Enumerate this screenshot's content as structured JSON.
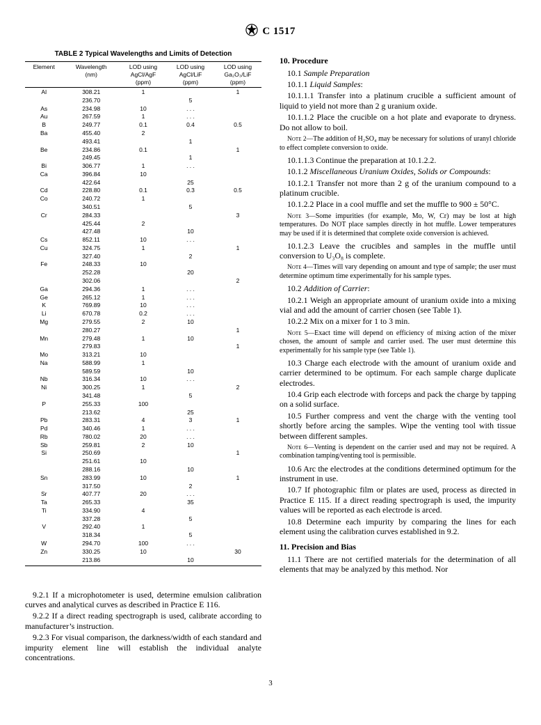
{
  "doc": {
    "standard": "C 1517",
    "logo_label": "ASTM logo",
    "page_number": "3"
  },
  "table2": {
    "caption": "TABLE 2  Typical Wavelengths and Limits of Detection",
    "headers": [
      "Element",
      "Wavelength\n(nm)",
      "LOD using\nAgCl/AgF\n(ppm)",
      "LOD using\nAgCl/LiF\n(ppm)",
      "LOD using\nGa₂O₃/LiF\n(ppm)"
    ],
    "col_widths_pct": [
      16,
      24,
      20,
      20,
      20
    ],
    "rows": [
      [
        "Al",
        "308.21",
        "1",
        "",
        "1"
      ],
      [
        "",
        "236.70",
        "",
        "5",
        ""
      ],
      [
        "As",
        "234.98",
        "10",
        ". . .",
        ""
      ],
      [
        "Au",
        "267.59",
        "1",
        ". . .",
        ""
      ],
      [
        "B",
        "249.77",
        "0.1",
        "0.4",
        "0.5"
      ],
      [
        "Ba",
        "455.40",
        "2",
        "",
        ""
      ],
      [
        "",
        "493.41",
        "",
        "1",
        ""
      ],
      [
        "Be",
        "234.86",
        "0.1",
        "",
        "1"
      ],
      [
        "",
        "249.45",
        "",
        "1",
        ""
      ],
      [
        "Bi",
        "306.77",
        "1",
        ". . .",
        ""
      ],
      [
        "Ca",
        "396.84",
        "10",
        "",
        ""
      ],
      [
        "",
        "422.64",
        "",
        "25",
        ""
      ],
      [
        "Cd",
        "228.80",
        "0.1",
        "0.3",
        "0.5"
      ],
      [
        "Co",
        "240.72",
        "1",
        "",
        ""
      ],
      [
        "",
        "340.51",
        "",
        "5",
        ""
      ],
      [
        "Cr",
        "284.33",
        "",
        "",
        "3"
      ],
      [
        "",
        "425.44",
        "2",
        "",
        ""
      ],
      [
        "",
        "427.48",
        "",
        "10",
        ""
      ],
      [
        "Cs",
        "852.11",
        "10",
        ". . .",
        ""
      ],
      [
        "Cu",
        "324.75",
        "1",
        "",
        "1"
      ],
      [
        "",
        "327.40",
        "",
        "2",
        ""
      ],
      [
        "Fe",
        "248.33",
        "10",
        "",
        ""
      ],
      [
        "",
        "252.28",
        "",
        "20",
        ""
      ],
      [
        "",
        "302.06",
        "",
        "",
        "2"
      ],
      [
        "Ga",
        "294.36",
        "1",
        ". . .",
        ""
      ],
      [
        "Ge",
        "265.12",
        "1",
        ". . .",
        ""
      ],
      [
        "K",
        "769.89",
        "10",
        ". . .",
        ""
      ],
      [
        "Li",
        "670.78",
        "0.2",
        ". . .",
        ""
      ],
      [
        "Mg",
        "279.55",
        "2",
        "10",
        ""
      ],
      [
        "",
        "280.27",
        "",
        "",
        "1"
      ],
      [
        "Mn",
        "279.48",
        "1",
        "10",
        ""
      ],
      [
        "",
        "279.83",
        "",
        "",
        "1"
      ],
      [
        "Mo",
        "313.21",
        "10",
        "",
        ""
      ],
      [
        "Na",
        "588.99",
        "1",
        "",
        ""
      ],
      [
        "",
        "589.59",
        "",
        "10",
        ""
      ],
      [
        "Nb",
        "316.34",
        "10",
        ". . .",
        ""
      ],
      [
        "Ni",
        "300.25",
        "1",
        "",
        "2"
      ],
      [
        "",
        "341.48",
        "",
        "5",
        ""
      ],
      [
        "P",
        "255.33",
        "100",
        "",
        ""
      ],
      [
        "",
        "213.62",
        "",
        "25",
        ""
      ],
      [
        "Pb",
        "283.31",
        "4",
        "3",
        "1"
      ],
      [
        "Pd",
        "340.46",
        "1",
        ". . .",
        ""
      ],
      [
        "Rb",
        "780.02",
        "20",
        ". . .",
        ""
      ],
      [
        "Sb",
        "259.81",
        "2",
        "10",
        ""
      ],
      [
        "Si",
        "250.69",
        "",
        "",
        "1"
      ],
      [
        "",
        "251.61",
        "10",
        "",
        ""
      ],
      [
        "",
        "288.16",
        "",
        "10",
        ""
      ],
      [
        "Sn",
        "283.99",
        "10",
        "",
        "1"
      ],
      [
        "",
        "317.50",
        "",
        "2",
        ""
      ],
      [
        "Sr",
        "407.77",
        "20",
        ". . .",
        ""
      ],
      [
        "Ta",
        "265.33",
        "",
        "35",
        ""
      ],
      [
        "Ti",
        "334.90",
        "4",
        "",
        ""
      ],
      [
        "",
        "337.28",
        "",
        "5",
        ""
      ],
      [
        "V",
        "292.40",
        "1",
        "",
        ""
      ],
      [
        "",
        "318.34",
        "",
        "5",
        ""
      ],
      [
        "W",
        "294.70",
        "100",
        ". . .",
        ""
      ],
      [
        "Zn",
        "330.25",
        "10",
        "",
        "30"
      ],
      [
        "",
        "213.86",
        "",
        "10",
        ""
      ]
    ]
  },
  "left_paras": {
    "p1": "9.2.1 If a microphotometer is used, determine emulsion calibration curves and analytical curves as described in Practice E 116.",
    "p2": "9.2.2 If a direct reading spectrograph is used, calibrate according to manufacturer’s instruction.",
    "p3": "9.2.3 For visual comparison, the darkness/width of each standard and impurity element line will establish the individual analyte concentrations."
  },
  "right": {
    "s10": "10. Procedure",
    "p10_1_lead": "10.1 ",
    "p10_1_em": "Sample Preparation",
    "p10_1_1_lead": "10.1.1 ",
    "p10_1_1_em": "Liquid Samples",
    "p10_1_1_tail": ":",
    "p10_1_1_1": "10.1.1.1 Transfer into a platinum crucible a sufficient amount of liquid to yield not more than 2 g uranium oxide.",
    "p10_1_1_2": "10.1.1.2 Place the crucible on a hot plate and evaporate to dryness. Do not allow to boil.",
    "note2_lead": "Note 2—",
    "note2": "The addition of H₂SO₄ may be necessary for solutions of uranyl chloride to effect complete conversion to oxide.",
    "p10_1_1_3": "10.1.1.3 Continue the preparation at 10.1.2.2.",
    "p10_1_2_lead": "10.1.2 ",
    "p10_1_2_em": "Miscellaneous Uranium Oxides, Solids or Compounds",
    "p10_1_2_tail": ":",
    "p10_1_2_1": "10.1.2.1 Transfer not more than 2 g of the uranium compound to a platinum crucible.",
    "p10_1_2_2": "10.1.2.2 Place in a cool muffle and set the muffle to 900 ± 50°C.",
    "note3_lead": "Note 3—",
    "note3": "Some impurities (for example, Mo, W, Cr) may be lost at high temperatures. Do NOT place samples directly in hot muffle. Lower temperatures may be used if it is determined that complete oxide conversion is achieved.",
    "p10_1_2_3": "10.1.2.3 Leave the crucibles and samples in the muffle until conversion to U₃O₈ is complete.",
    "note4_lead": "Note 4—",
    "note4": "Times will vary depending on amount and type of sample; the user must determine optimum time experimentally for his sample types.",
    "p10_2_lead": "10.2 ",
    "p10_2_em": "Addition of Carrier",
    "p10_2_tail": ":",
    "p10_2_1": "10.2.1 Weigh an appropriate amount of uranium oxide into a mixing vial and add the amount of carrier chosen (see Table 1).",
    "p10_2_2": "10.2.2 Mix on a mixer for 1 to 3 min.",
    "note5_lead": "Note 5—",
    "note5": "Exact time will depend on efficiency of mixing action of the mixer chosen, the amount of sample and carrier used. The user must determine this experimentally for his sample type (see Table 1).",
    "p10_3": "10.3 Charge each electrode with the amount of uranium oxide and carrier determined to be optimum. For each sample charge duplicate electrodes.",
    "p10_4": "10.4 Grip each electrode with forceps and pack the charge by tapping on a solid surface.",
    "p10_5": "10.5 Further compress and vent the charge with the venting tool shortly before arcing the samples. Wipe the venting tool with tissue between different samples.",
    "note6_lead": "Note 6—",
    "note6": "Venting is dependent on the carrier used and may not be required. A combination tamping/venting tool is permissible.",
    "p10_6": "10.6 Arc the electrodes at the conditions determined optimum for the instrument in use.",
    "p10_7": "10.7 If photographic film or plates are used, process as directed in Practice E 115. If a direct reading spectrograph is used, the impurity values will be reported as each electrode is arced.",
    "p10_8": "10.8 Determine each impurity by comparing the lines for each element using the calibration curves established in 9.2.",
    "s11": "11.  Precision and Bias",
    "p11_1": "11.1 There are not certified materials for the determination of all elements that may be analyzed by this method. Nor"
  }
}
